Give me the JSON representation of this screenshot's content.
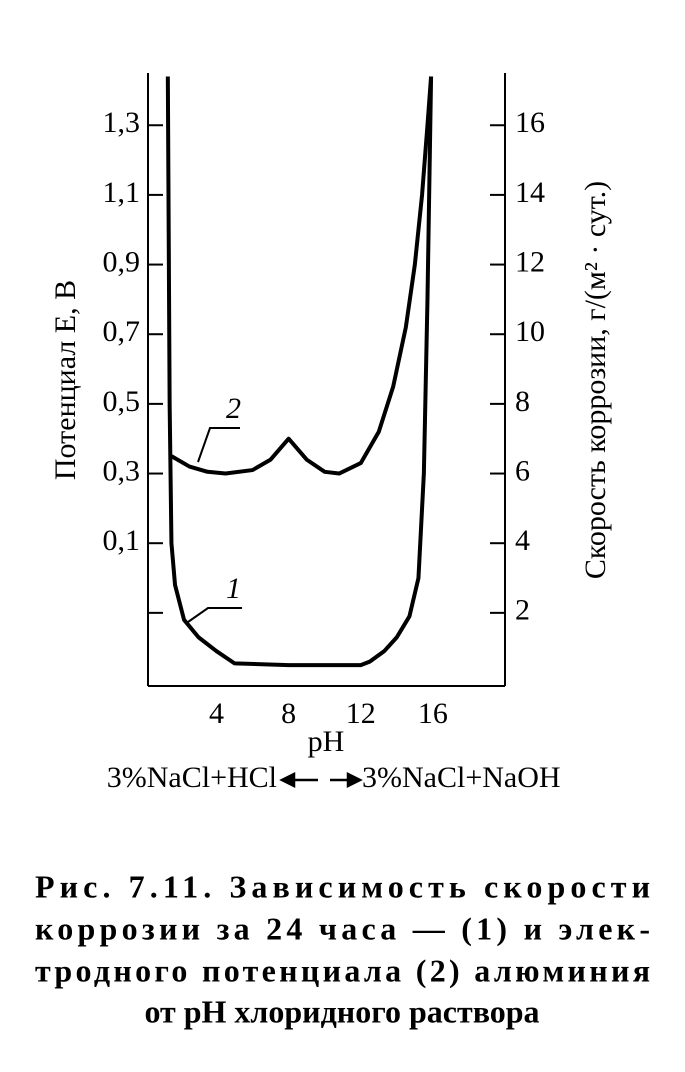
{
  "chart_data": {
    "type": "line",
    "x_label": "pH",
    "y_label": "Потенциал E, В",
    "y2_label": "Скорость коррозии, г/(м² · сут.)",
    "xlim": [
      0.2,
      20
    ],
    "xticks": [
      4,
      8,
      12,
      16
    ],
    "ylim": [
      -0.31,
      1.45
    ],
    "yticks": [
      {
        "value": 1.3,
        "label": "1,3"
      },
      {
        "value": 1.1,
        "label": "1,1"
      },
      {
        "value": 0.9,
        "label": "0,9"
      },
      {
        "value": 0.7,
        "label": "0,7"
      },
      {
        "value": 0.5,
        "label": "0,5"
      },
      {
        "value": 0.3,
        "label": "0,3"
      },
      {
        "value": 0.1,
        "label": "0,1"
      },
      {
        "value": -0.1
      }
    ],
    "y2lim": [
      -0.1,
      17.5
    ],
    "y2ticks": [
      16,
      14,
      12,
      10,
      8,
      6,
      4,
      2
    ],
    "series": [
      {
        "name": "1",
        "axis": "y2",
        "color": "#000000",
        "x": [
          1.3,
          1.4,
          1.5,
          1.7,
          2.2,
          3,
          4,
          5,
          8,
          12,
          12.5,
          13.3,
          14,
          14.7,
          15.2,
          15.5,
          15.7,
          15.9
        ],
        "values": [
          17.4,
          8,
          4,
          2.8,
          1.8,
          1.3,
          0.9,
          0.55,
          0.5,
          0.5,
          0.6,
          0.9,
          1.3,
          1.9,
          3,
          6,
          11,
          17.4
        ]
      },
      {
        "name": "2",
        "color": "#000000",
        "x": [
          1.5,
          2.5,
          3.5,
          4.5,
          6,
          7,
          8,
          9,
          10,
          10.8,
          12,
          13,
          13.8,
          14.5,
          15,
          15.4,
          15.7,
          15.9
        ],
        "values": [
          0.35,
          0.32,
          0.305,
          0.3,
          0.31,
          0.34,
          0.4,
          0.34,
          0.305,
          0.3,
          0.33,
          0.42,
          0.55,
          0.72,
          0.9,
          1.1,
          1.3,
          1.44
        ]
      }
    ],
    "acid_side": "3%NaCl+HCl",
    "alkaline_side": "3%NaCl+NaOH",
    "caption_lines": [
      "Рис.   7.11. Зависимость  скорости",
      "коррозии за 24 часа — (1) и элек-",
      "тродного потенциала (2) алюминия",
      "от pH хлоридного раствора"
    ]
  }
}
